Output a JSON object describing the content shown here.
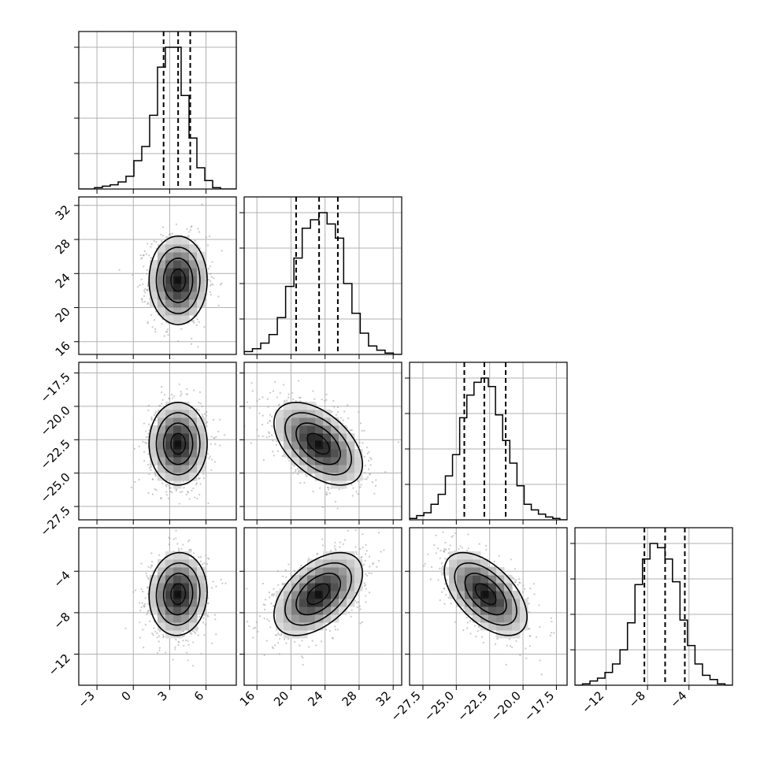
{
  "chart_data": {
    "type": "corner",
    "parameters": [
      {
        "mean": 3.7,
        "sd": 1.2,
        "range": [
          -4.5,
          8.5
        ],
        "ticks": [
          -3,
          0,
          3,
          6
        ],
        "tick_labels": [
          "−3",
          "0",
          "3",
          "6"
        ],
        "quantiles": [
          2.5,
          3.7,
          4.7
        ],
        "histogram": [
          0,
          0,
          1,
          2,
          3,
          5,
          9,
          20,
          30,
          52,
          86,
          100,
          100,
          66,
          36,
          15,
          6,
          1,
          0,
          0
        ]
      },
      {
        "mean": 23.2,
        "sd": 2.6,
        "range": [
          14.5,
          33.0
        ],
        "ticks": [
          16,
          20,
          24,
          28,
          32
        ],
        "tick_labels": [
          "16",
          "20",
          "24",
          "28",
          "32"
        ],
        "quantiles": [
          20.6,
          23.3,
          25.5
        ],
        "histogram": [
          2,
          4,
          8,
          14,
          26,
          48,
          68,
          89,
          95,
          100,
          92,
          82,
          50,
          29,
          15,
          6,
          3,
          1,
          0
        ]
      },
      {
        "mean": -22.8,
        "sd": 1.55,
        "range": [
          -28.5,
          -16.7
        ],
        "ticks": [
          -27.5,
          -25.0,
          -22.5,
          -20.0,
          -17.5
        ],
        "tick_labels": [
          "−27.5",
          "−25.0",
          "−22.5",
          "−20.0",
          "−17.5"
        ],
        "quantiles": [
          -24.4,
          -22.9,
          -21.3
        ],
        "histogram": [
          1,
          3,
          5,
          11,
          18,
          31,
          46,
          72,
          88,
          97,
          100,
          94,
          74,
          56,
          40,
          24,
          11,
          7,
          4,
          2,
          1,
          0
        ]
      },
      {
        "mean": -6.2,
        "sd": 2.0,
        "range": [
          -15.0,
          0.2
        ],
        "ticks": [
          -12,
          -8,
          -4
        ],
        "tick_labels": [
          "−12",
          "−8",
          "−4"
        ],
        "quantiles": [
          -8.3,
          -6.3,
          -4.4
        ],
        "histogram": [
          0,
          1,
          3,
          5,
          9,
          15,
          25,
          44,
          71,
          89,
          100,
          97,
          89,
          73,
          46,
          28,
          15,
          7,
          4,
          1,
          0
        ]
      }
    ],
    "correlations": [
      [
        1.0,
        0.0,
        0.0,
        0.05
      ],
      [
        0.0,
        1.0,
        -0.5,
        0.5
      ],
      [
        0.0,
        -0.5,
        1.0,
        -0.55
      ],
      [
        0.05,
        0.5,
        -0.55,
        1.0
      ]
    ],
    "contour_levels_sigma": [
      0.5,
      1.0,
      1.5,
      2.0
    ],
    "grid": true,
    "colors": {
      "line": "#000000",
      "points": "#9a9a9a",
      "grid": "#b0b0b0"
    }
  }
}
